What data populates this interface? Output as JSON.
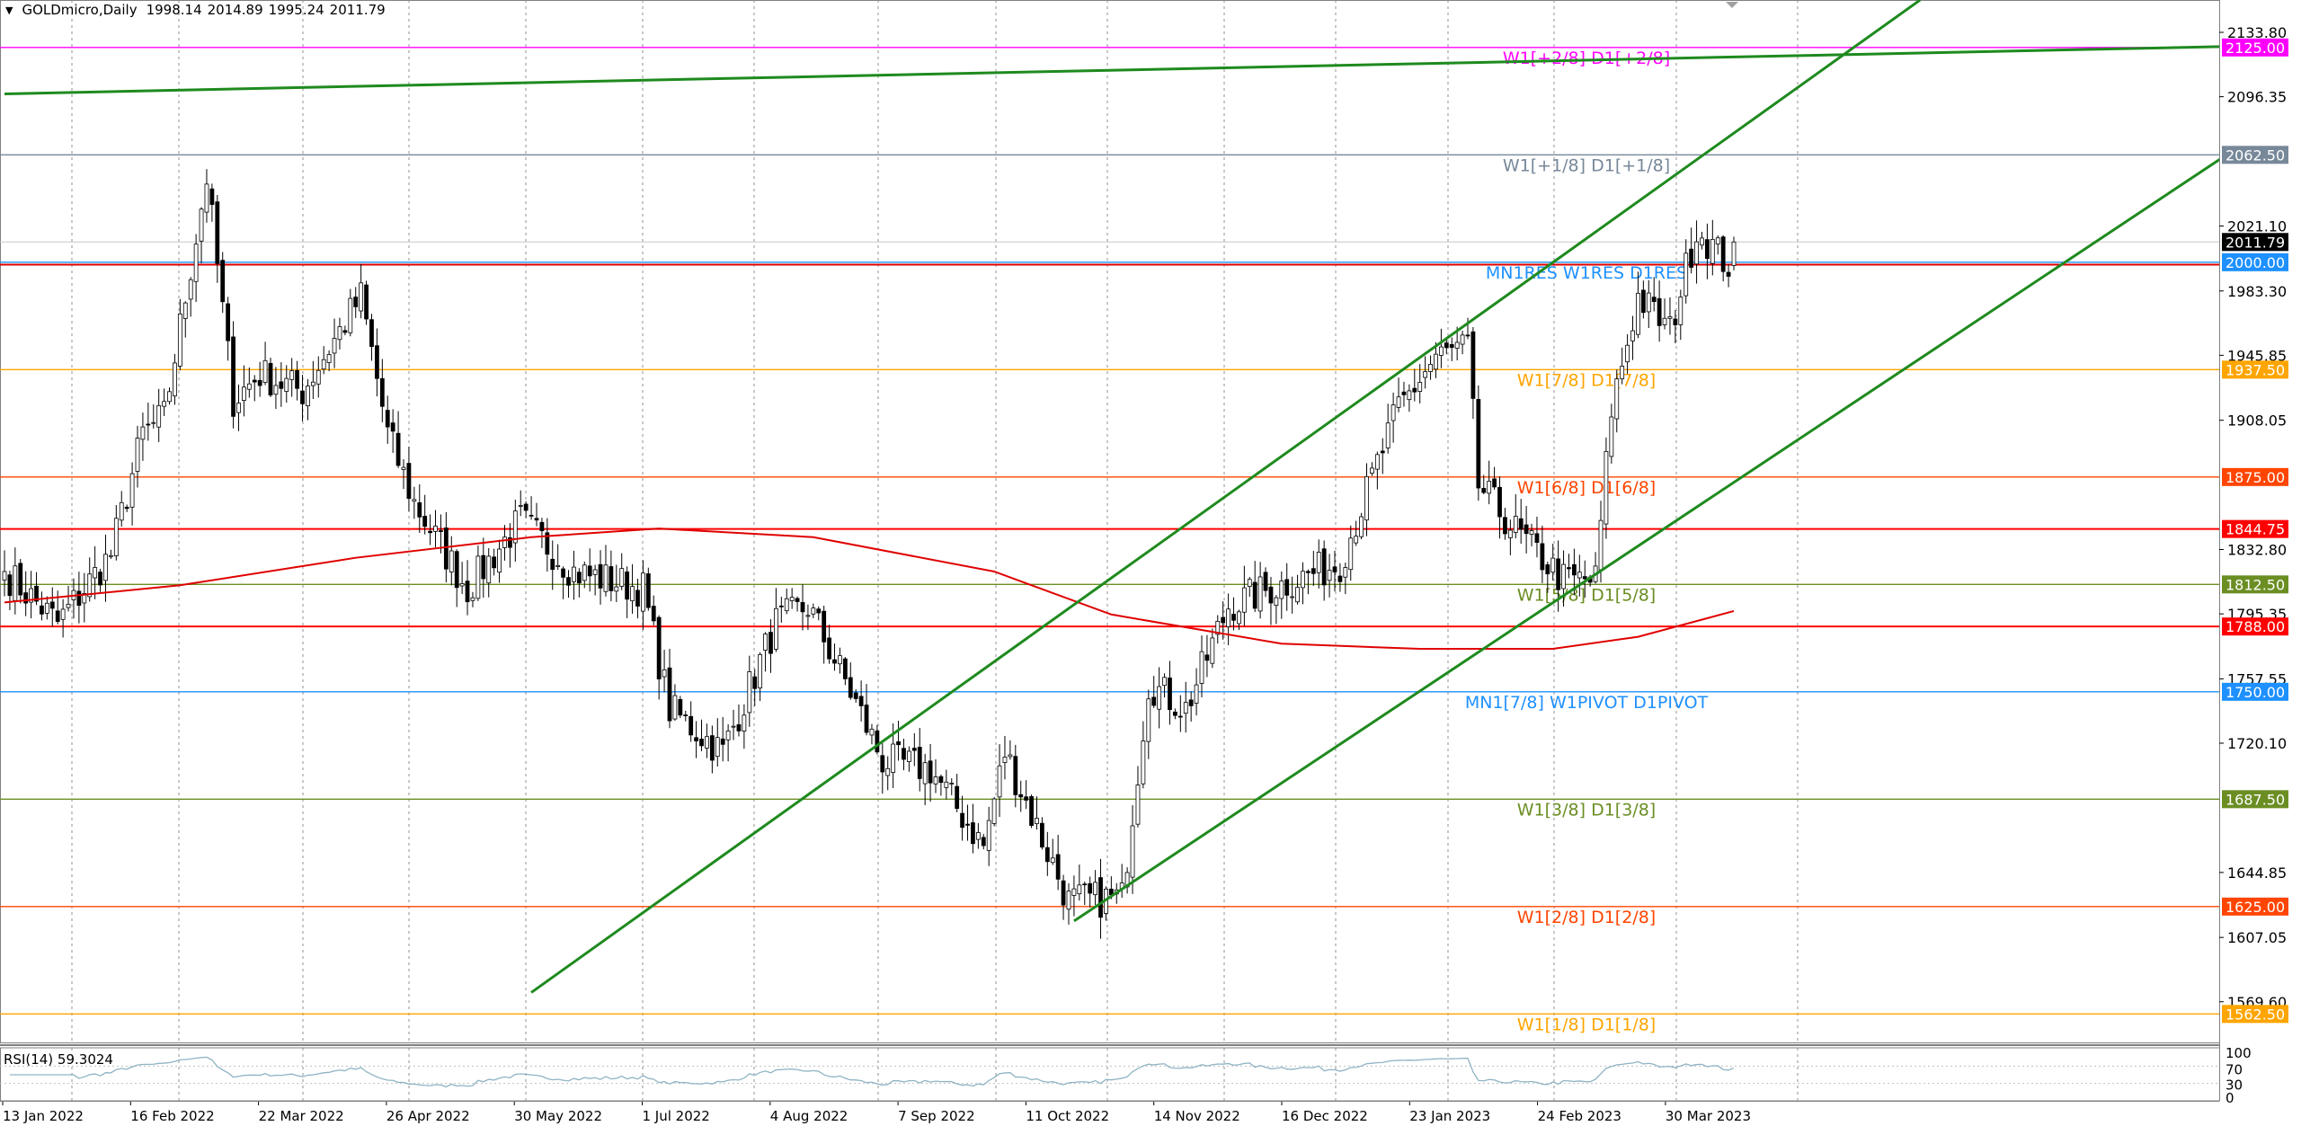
{
  "header": {
    "symbol_timeframe": "GOLDmicro,Daily",
    "open": "1998.14",
    "high": "2014.89",
    "low": "1995.24",
    "close": "2011.79"
  },
  "colors": {
    "bull": "#ffffff",
    "bear": "#000000",
    "outline": "#000000",
    "ma": "#e00000",
    "trend": "#1e8a1e",
    "rsi": "#8fb3c4",
    "grid": "#b0b0b0"
  },
  "chart_data": {
    "type": "candlestick",
    "symbol": "GOLDmicro",
    "timeframe": "Daily",
    "start_date": "2022-01-13",
    "end_date": "2023-04-13",
    "ylim": [
      1540,
      2160
    ],
    "last_candle": {
      "open": 1998.14,
      "high": 2014.89,
      "low": 1995.24,
      "close": 2011.79
    },
    "close_anchors": [
      [
        "2022-01-13",
        1820
      ],
      [
        "2022-01-27",
        1790
      ],
      [
        "2022-02-10",
        1830
      ],
      [
        "2022-02-18",
        1900
      ],
      [
        "2022-02-24",
        1910
      ],
      [
        "2022-03-08",
        2050
      ],
      [
        "2022-03-15",
        1920
      ],
      [
        "2022-03-22",
        1935
      ],
      [
        "2022-04-01",
        1925
      ],
      [
        "2022-04-18",
        1980
      ],
      [
        "2022-04-25",
        1900
      ],
      [
        "2022-05-02",
        1860
      ],
      [
        "2022-05-16",
        1810
      ],
      [
        "2022-05-30",
        1850
      ],
      [
        "2022-06-13",
        1820
      ],
      [
        "2022-06-30",
        1810
      ],
      [
        "2022-07-07",
        1740
      ],
      [
        "2022-07-21",
        1715
      ],
      [
        "2022-08-04",
        1790
      ],
      [
        "2022-08-12",
        1800
      ],
      [
        "2022-08-24",
        1750
      ],
      [
        "2022-09-01",
        1710
      ],
      [
        "2022-09-14",
        1705
      ],
      [
        "2022-09-28",
        1660
      ],
      [
        "2022-10-04",
        1715
      ],
      [
        "2022-10-20",
        1628
      ],
      [
        "2022-11-03",
        1630
      ],
      [
        "2022-11-10",
        1755
      ],
      [
        "2022-11-21",
        1740
      ],
      [
        "2022-12-01",
        1800
      ],
      [
        "2022-12-13",
        1810
      ],
      [
        "2022-12-30",
        1825
      ],
      [
        "2023-01-16",
        1915
      ],
      [
        "2023-01-25",
        1945
      ],
      [
        "2023-02-02",
        1950
      ],
      [
        "2023-02-06",
        1870
      ],
      [
        "2023-02-16",
        1840
      ],
      [
        "2023-02-28",
        1815
      ],
      [
        "2023-03-08",
        1815
      ],
      [
        "2023-03-13",
        1915
      ],
      [
        "2023-03-20",
        1980
      ],
      [
        "2023-03-28",
        1960
      ],
      [
        "2023-04-04",
        2020
      ],
      [
        "2023-04-12",
        1998.14
      ],
      [
        "2023-04-13",
        2011.79
      ]
    ],
    "moving_average_200": [
      [
        "2022-01-13",
        1802
      ],
      [
        "2022-03-01",
        1812
      ],
      [
        "2022-04-15",
        1828
      ],
      [
        "2022-06-01",
        1840
      ],
      [
        "2022-07-05",
        1845
      ],
      [
        "2022-08-15",
        1840
      ],
      [
        "2022-10-01",
        1820
      ],
      [
        "2022-11-01",
        1795
      ],
      [
        "2022-12-15",
        1778
      ],
      [
        "2023-01-20",
        1775
      ],
      [
        "2023-02-24",
        1775
      ],
      [
        "2023-03-20",
        1782
      ],
      [
        "2023-04-13",
        1797
      ]
    ],
    "trendlines": [
      {
        "from": [
          "2022-01-13",
          2098
        ],
        "to": [
          "2023-08-30",
          2126
        ]
      },
      {
        "from": [
          "2022-06-01",
          1575
        ],
        "to": [
          "2023-06-01",
          2152.6
        ]
      },
      {
        "from": [
          "2022-10-21",
          1616.6
        ],
        "to": [
          "2023-08-30",
          2075.7
        ]
      }
    ],
    "levels": [
      {
        "price": 2125.0,
        "label": "W1[+2/8] D1[+2/8]",
        "tag": "2125.00",
        "color": "#ff00ff"
      },
      {
        "price": 2062.5,
        "label": "W1[+1/8] D1[+1/8]",
        "tag": "2062.50",
        "color": "#778899"
      },
      {
        "price": 2000.0,
        "label": "MN1RES W1RES D1RES",
        "tag": "2000.00",
        "color": "#1e90ff"
      },
      {
        "price": 1937.5,
        "label": "W1[7/8] D1[7/8]",
        "tag": "1937.50",
        "color": "#ffa500"
      },
      {
        "price": 1875.0,
        "label": "W1[6/8] D1[6/8]",
        "tag": "1875.00",
        "color": "#ff4500"
      },
      {
        "price": 1844.75,
        "label": "",
        "tag": "1844.75",
        "color": "#ff0000"
      },
      {
        "price": 1812.5,
        "label": "W1[5/8] D1[5/8]",
        "tag": "1812.50",
        "color": "#6b8e23"
      },
      {
        "price": 1788.0,
        "label": "",
        "tag": "1788.00",
        "color": "#ff0000"
      },
      {
        "price": 1750.0,
        "label": "MN1[7/8] W1PIVOT D1PIVOT",
        "tag": "1750.00",
        "color": "#1e90ff"
      },
      {
        "price": 1687.5,
        "label": "W1[3/8] D1[3/8]",
        "tag": "1687.50",
        "color": "#6b8e23"
      },
      {
        "price": 1625.0,
        "label": "W1[2/8] D1[2/8]",
        "tag": "1625.00",
        "color": "#ff4500"
      },
      {
        "price": 1562.5,
        "label": "W1[1/8] D1[1/8]",
        "tag": "1562.50",
        "color": "#ffa500"
      }
    ],
    "current_price": {
      "price": 2011.79,
      "tag": "2011.79"
    },
    "price_ticks": [
      "2133.80",
      "2096.35",
      "2021.10",
      "1983.30",
      "1945.85",
      "1908.05",
      "1832.80",
      "1795.35",
      "1757.55",
      "1720.10",
      "1644.85",
      "1607.05",
      "1569.60"
    ],
    "time_ticks": [
      "13 Jan 2022",
      "16 Feb 2022",
      "22 Mar 2022",
      "26 Apr 2022",
      "30 May 2022",
      "1 Jul 2022",
      "4 Aug 2022",
      "7 Sep 2022",
      "11 Oct 2022",
      "14 Nov 2022",
      "16 Dec 2022",
      "23 Jan 2023",
      "24 Feb 2023",
      "30 Mar 2023"
    ],
    "rsi": {
      "label": "RSI(14) 59.3024",
      "period": 14,
      "ticks": [
        "100",
        "70",
        "30",
        "0"
      ],
      "levels": [
        70,
        30
      ]
    }
  }
}
